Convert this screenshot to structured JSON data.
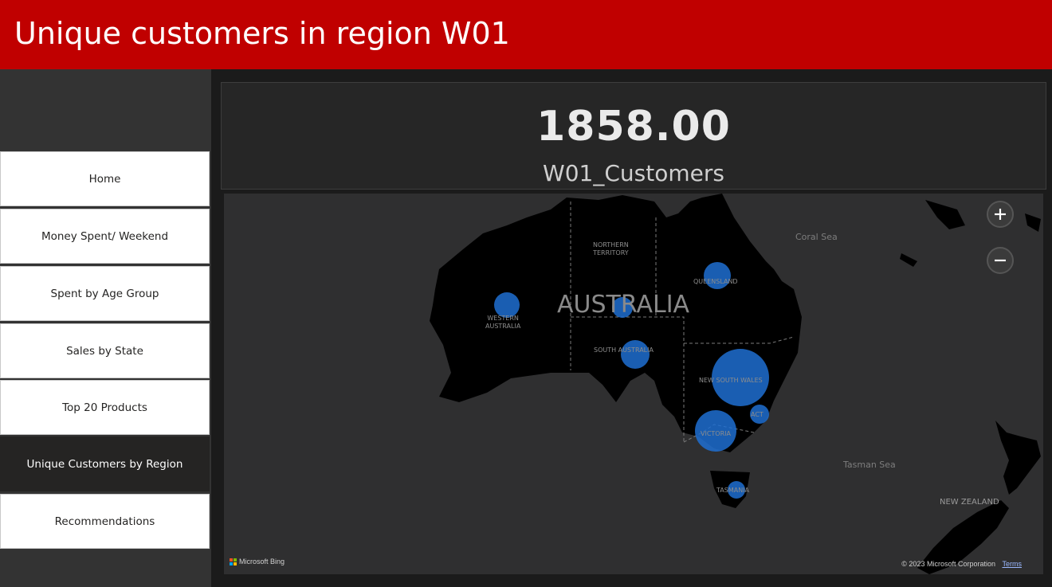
{
  "header": {
    "title": "Unique customers in region W01"
  },
  "sidebar": {
    "items": [
      {
        "label": "Home"
      },
      {
        "label": "Money Spent/ Weekend"
      },
      {
        "label": "Spent by Age Group"
      },
      {
        "label": "Sales by State"
      },
      {
        "label": "Top 20 Products"
      },
      {
        "label": "Unique Customers by Region",
        "active": true
      },
      {
        "label": "Recommendations"
      }
    ]
  },
  "card": {
    "value": "1858.00",
    "label": "W01_Customers"
  },
  "map": {
    "country_label": "AUSTRALIA",
    "region_labels": {
      "northern_territory": "NORTHERN\nTERRITORY",
      "queensland": "QUEENSLAND",
      "western_australia": "WESTERN\nAUSTRALIA",
      "south_australia": "SOUTH AUSTRALIA",
      "new_south_wales": "NEW SOUTH WALES",
      "act": "ACT",
      "victoria": "VICTORIA",
      "tasmania": "TASMANIA",
      "new_zealand": "NEW ZEALAND"
    },
    "seas": {
      "coral_sea": "Coral Sea",
      "tasman_sea": "Tasman Sea"
    },
    "zoom_in": "+",
    "zoom_out": "−",
    "attribution": {
      "bing": "Microsoft Bing",
      "copyright": "© 2023 Microsoft Corporation",
      "terms": "Terms"
    },
    "colors": {
      "bubble": "#1f6fd1",
      "land": "#000000",
      "water": "#2f2f30"
    }
  }
}
